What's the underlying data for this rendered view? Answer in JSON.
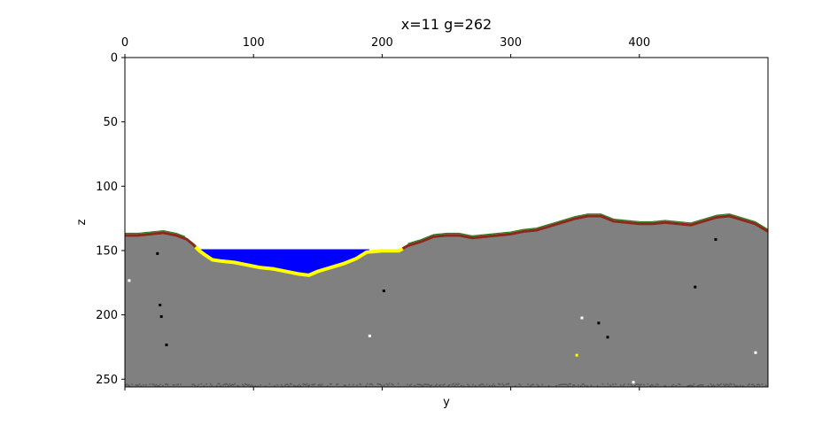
{
  "chart_data": {
    "type": "heatmap",
    "title": "x=11 g=262",
    "xlabel": "y",
    "ylabel": "z",
    "xlim": [
      0,
      500
    ],
    "ylim": [
      256,
      0
    ],
    "x_axis_position": "top",
    "x_ticks": [
      0,
      100,
      200,
      300,
      400
    ],
    "y_ticks": [
      0,
      50,
      100,
      150,
      200,
      250
    ],
    "grid": false,
    "legend": "none",
    "colors": {
      "air": "#ffffff",
      "stone": "#808080",
      "water": "#0000ff",
      "sand": "#ffff00",
      "dirt": "#8b2a1a",
      "grass": "#2f7a1f",
      "cave": "#000000",
      "bedrock": "#555555"
    },
    "terrain_surface": [
      [
        0,
        137
      ],
      [
        10,
        137
      ],
      [
        20,
        136
      ],
      [
        30,
        135
      ],
      [
        40,
        137
      ],
      [
        48,
        140
      ],
      [
        53,
        144
      ],
      [
        58,
        149
      ],
      [
        62,
        152
      ],
      [
        68,
        156
      ],
      [
        75,
        157
      ],
      [
        85,
        158
      ],
      [
        95,
        160
      ],
      [
        105,
        162
      ],
      [
        115,
        163
      ],
      [
        125,
        165
      ],
      [
        135,
        167
      ],
      [
        143,
        168
      ],
      [
        150,
        165
      ],
      [
        160,
        162
      ],
      [
        170,
        159
      ],
      [
        180,
        155
      ],
      [
        188,
        150
      ],
      [
        200,
        149
      ],
      [
        213,
        149
      ],
      [
        220,
        145
      ],
      [
        230,
        142
      ],
      [
        240,
        138
      ],
      [
        250,
        137
      ],
      [
        260,
        137
      ],
      [
        270,
        139
      ],
      [
        280,
        138
      ],
      [
        290,
        137
      ],
      [
        300,
        136
      ],
      [
        310,
        134
      ],
      [
        320,
        133
      ],
      [
        330,
        130
      ],
      [
        340,
        127
      ],
      [
        350,
        124
      ],
      [
        360,
        122
      ],
      [
        370,
        122
      ],
      [
        380,
        126
      ],
      [
        390,
        127
      ],
      [
        400,
        128
      ],
      [
        410,
        128
      ],
      [
        420,
        127
      ],
      [
        430,
        128
      ],
      [
        440,
        129
      ],
      [
        450,
        126
      ],
      [
        460,
        123
      ],
      [
        470,
        122
      ],
      [
        480,
        125
      ],
      [
        490,
        128
      ],
      [
        500,
        134
      ]
    ],
    "water_body": {
      "level": 149,
      "y_range": [
        58,
        190
      ]
    },
    "sand_y_range": [
      55,
      216
    ],
    "specks": [
      {
        "y": 25,
        "z": 152,
        "color": "cave"
      },
      {
        "y": 3,
        "z": 173,
        "color": "air"
      },
      {
        "y": 27,
        "z": 192,
        "color": "cave"
      },
      {
        "y": 28,
        "z": 201,
        "color": "cave"
      },
      {
        "y": 32,
        "z": 223,
        "color": "cave"
      },
      {
        "y": 201,
        "z": 181,
        "color": "cave"
      },
      {
        "y": 190,
        "z": 216,
        "color": "air"
      },
      {
        "y": 355,
        "z": 202,
        "color": "air"
      },
      {
        "y": 368,
        "z": 206,
        "color": "cave"
      },
      {
        "y": 375,
        "z": 217,
        "color": "cave"
      },
      {
        "y": 351,
        "z": 231,
        "color": "sand"
      },
      {
        "y": 443,
        "z": 178,
        "color": "cave"
      },
      {
        "y": 459,
        "z": 141,
        "color": "cave"
      },
      {
        "y": 490,
        "z": 229,
        "color": "air"
      },
      {
        "y": 395,
        "z": 252,
        "color": "air"
      }
    ]
  }
}
